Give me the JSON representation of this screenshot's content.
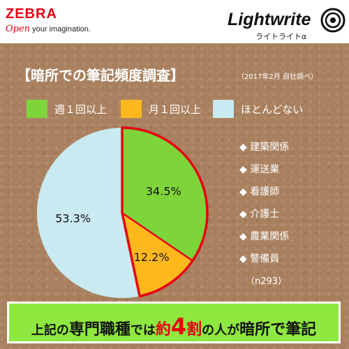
{
  "header": {
    "brand": "ZEBRA",
    "tagline_open": "Open",
    "tagline_rest": " your imagination.",
    "product": "Lightwrite",
    "product_sub": "ライトライトα"
  },
  "survey": {
    "title": "【暗所での筆記頻度調査】",
    "note": "（2017年2月 自社調べ）"
  },
  "colors": {
    "weekly": "#7ed53a",
    "monthly": "#ffb71e",
    "rarely": "#c8eaf0",
    "highlight_border": "#e60012"
  },
  "chart_data": {
    "type": "pie",
    "title": "",
    "slices": [
      {
        "label": "週１回以上",
        "value": 34.5,
        "display": "34.5%"
      },
      {
        "label": "月１回以上",
        "value": 12.2,
        "display": "12.2%"
      },
      {
        "label": "ほとんどない",
        "value": 53.3,
        "display": "53.3%"
      }
    ],
    "legend_position": "top"
  },
  "occupations": {
    "bullet": "◆",
    "items": [
      "建築関係",
      "運送業",
      "看護師",
      "介護士",
      "農業関係",
      "警備員"
    ],
    "sample": "（n293）"
  },
  "banner": {
    "p1": "上記の",
    "p2": "専門職種",
    "p3": "では",
    "p4": "約",
    "p5": "4",
    "p6": "割",
    "p7": "の人が",
    "p8": "暗所で筆記"
  }
}
